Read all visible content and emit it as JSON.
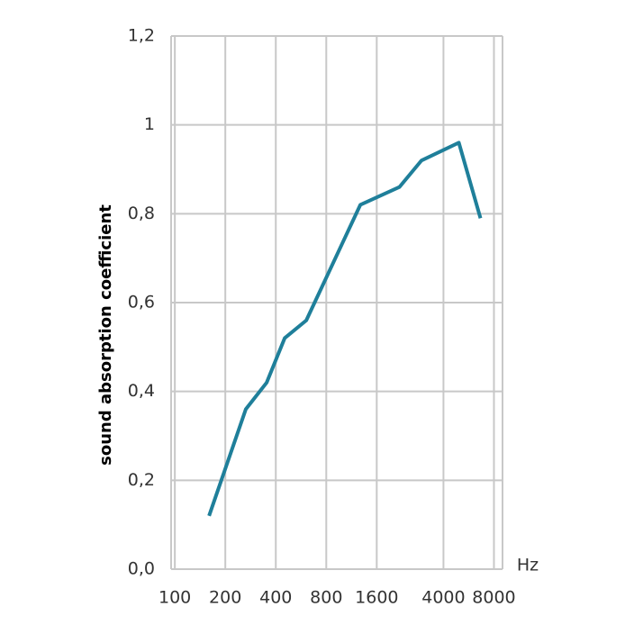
{
  "chart_data": {
    "type": "line",
    "y_label": "sound absorption coefficient",
    "x_label": "Hz",
    "x": [
      160,
      265,
      353,
      452,
      608,
      1277,
      2184,
      2960,
      4940,
      6650
    ],
    "series": [
      {
        "color": "#1f7f9a",
        "values": [
          0.12,
          0.36,
          0.42,
          0.52,
          0.56,
          0.82,
          0.86,
          0.92,
          0.96,
          0.79
        ]
      }
    ],
    "xlog": true,
    "xlim": [
      95,
      9000
    ],
    "xticks": [
      100,
      200,
      400,
      800,
      1600,
      4000,
      8000
    ],
    "ylim": [
      0,
      1.2
    ],
    "yticks": [
      {
        "value": 0,
        "label": "0,0"
      },
      {
        "value": 0.2,
        "label": "0,2"
      },
      {
        "value": 0.4,
        "label": "0,4"
      },
      {
        "value": 0.6,
        "label": "0,6"
      },
      {
        "value": 0.8,
        "label": "0,8"
      },
      1,
      {
        "value": 1.2,
        "label": "1,2"
      }
    ],
    "grid": true
  }
}
